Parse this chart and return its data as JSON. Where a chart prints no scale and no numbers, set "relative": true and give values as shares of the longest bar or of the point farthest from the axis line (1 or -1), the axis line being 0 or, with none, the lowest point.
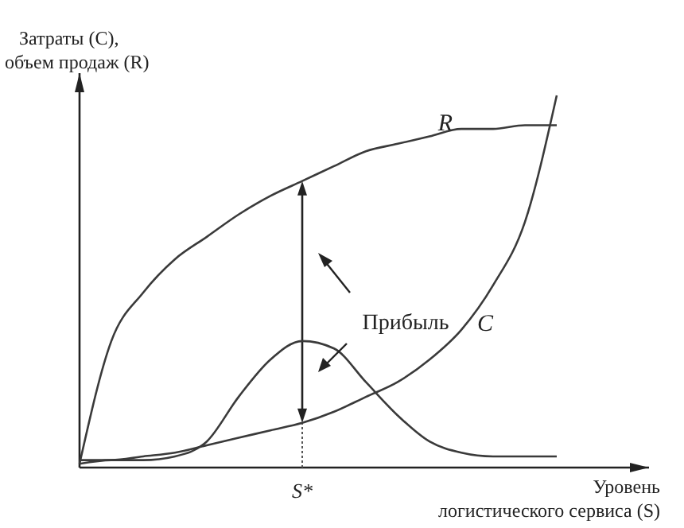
{
  "chart_data": {
    "type": "line",
    "relative": true,
    "xlabel": "Уровень\nлогистического сервиса (S)",
    "ylabel": "Затраты (C),\nобъем продаж (R)",
    "categories": [
      null,
      null,
      null,
      null,
      null,
      null,
      null,
      null,
      null,
      null,
      null,
      null,
      null,
      null,
      null,
      null
    ],
    "annotations": [
      "S*",
      "Прибыль"
    ],
    "series": [
      {
        "name": "R",
        "color": "#3a3a3a",
        "values": [
          0.01,
          0.34,
          0.47,
          0.56,
          0.62,
          0.68,
          0.73,
          0.77,
          0.81,
          0.85,
          0.87,
          0.89,
          0.91,
          0.91,
          0.92,
          0.92
        ]
      },
      {
        "name": "C",
        "color": "#3a3a3a",
        "values": [
          0.02,
          0.02,
          0.03,
          0.04,
          0.06,
          0.08,
          0.1,
          0.12,
          0.15,
          0.19,
          0.23,
          0.29,
          0.37,
          0.49,
          0.66,
          1
        ]
      },
      {
        "color": "#3a3a3a",
        "values": [
          0.01,
          0.02,
          0.02,
          0.03,
          0.07,
          0.19,
          0.29,
          0.34,
          0.32,
          0.23,
          0.14,
          0.07,
          0.04,
          0.03,
          0.03,
          0.03
        ]
      }
    ]
  }
}
